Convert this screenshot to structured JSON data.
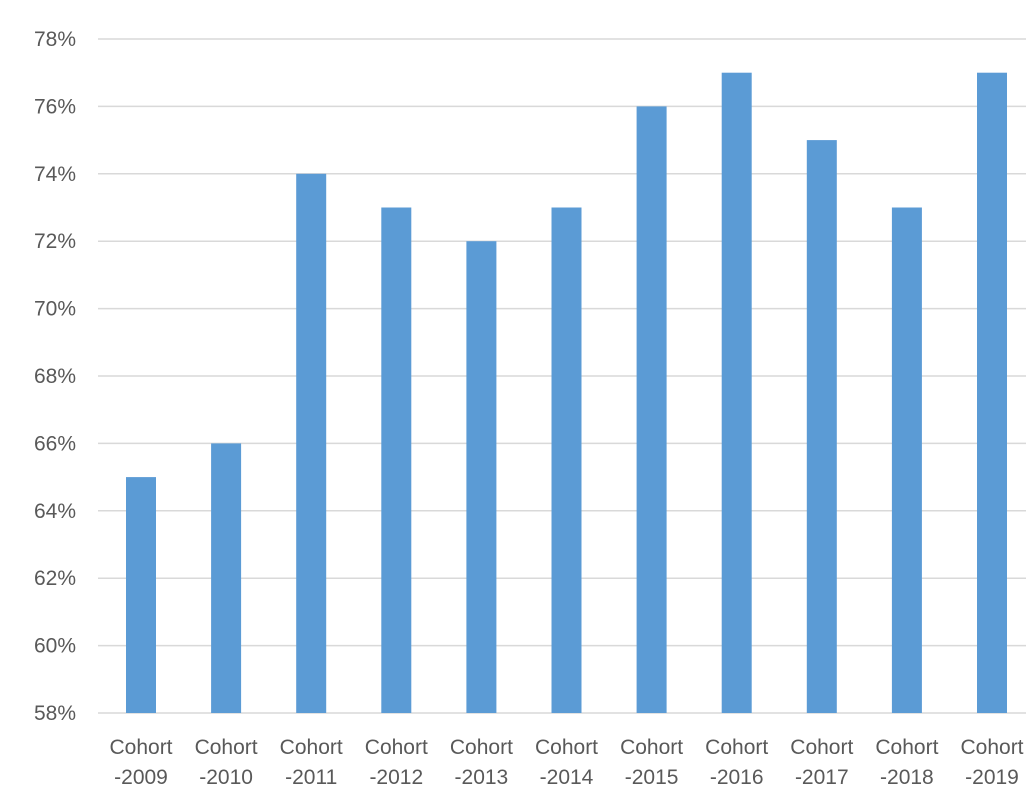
{
  "chart_data": {
    "type": "bar",
    "title": "",
    "xlabel": "",
    "ylabel": "",
    "categories": [
      [
        "Cohort",
        "-2009"
      ],
      [
        "Cohort",
        "-2010"
      ],
      [
        "Cohort",
        "-2011"
      ],
      [
        "Cohort",
        "-2012"
      ],
      [
        "Cohort",
        "-2013"
      ],
      [
        "Cohort",
        "-2014"
      ],
      [
        "Cohort",
        "-2015"
      ],
      [
        "Cohort",
        "-2016"
      ],
      [
        "Cohort",
        "-2017"
      ],
      [
        "Cohort",
        "-2018"
      ],
      [
        "Cohort",
        "-2019"
      ]
    ],
    "values": [
      65,
      66,
      74,
      73,
      72,
      73,
      76,
      77,
      75,
      73,
      77
    ],
    "value_unit": "%",
    "ylim": [
      58,
      78
    ],
    "yticks": [
      "58%",
      "60%",
      "62%",
      "64%",
      "66%",
      "68%",
      "70%",
      "72%",
      "74%",
      "76%",
      "78%"
    ],
    "grid": true,
    "legend": "none",
    "bar_color": "#5b9bd5"
  }
}
